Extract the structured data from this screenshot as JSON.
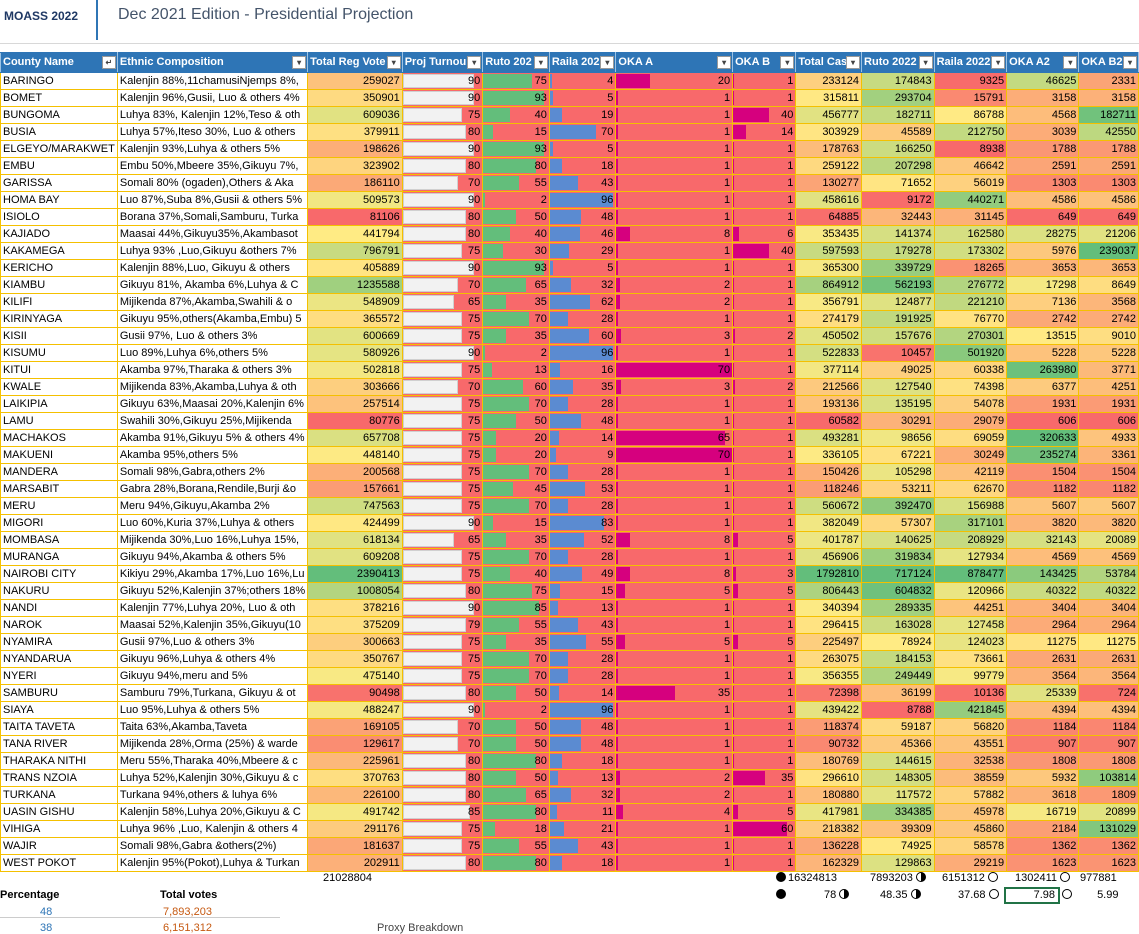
{
  "header": {
    "logo": "MOASS 2022",
    "title": "Dec 2021 Edition - Presidential Projection"
  },
  "colors": {
    "header_bg": "#2e75b6",
    "grid_line": "#f4c000",
    "green_bar": "#63be7b",
    "blue_bar": "#5b8bd1",
    "magenta_bar": "#d6007e",
    "red_fill": "#f8696b",
    "pale_fill": "#fde382"
  },
  "icons": {
    "filter": "dropdown-arrow-icon",
    "sort": "sort-filter-icon",
    "circle_full": "full-circle-icon",
    "circle_half": "half-circle-icon",
    "circle_empty": "empty-circle-icon"
  },
  "columns": [
    "County Name",
    "Ethnic Composition",
    "Total Reg Vote",
    "Proj Turnou",
    "Ruto 202",
    "Raila 202",
    "OKA A",
    "OKA B",
    "Total Cas",
    "Ruto 2022",
    "Raila 2022",
    "OKA A2",
    "OKA B2"
  ],
  "rows": [
    [
      "BARINGO",
      "Kalenjin 88%,11chamusiNjemps 8%,",
      "259027",
      "90",
      "75",
      "4",
      "20",
      "1",
      "233124",
      "174843",
      "9325",
      "46625",
      "2331"
    ],
    [
      "BOMET",
      "Kalenjin 96%,Gusii, Luo & others 4%",
      "350901",
      "90",
      "93",
      "5",
      "1",
      "1",
      "315811",
      "293704",
      "15791",
      "3158",
      "3158"
    ],
    [
      "BUNGOMA",
      "Luhya 83%, Kalenjin 12%,Teso & oth",
      "609036",
      "75",
      "40",
      "19",
      "1",
      "40",
      "456777",
      "182711",
      "86788",
      "4568",
      "182711"
    ],
    [
      "BUSIA",
      "Luhya 57%,Iteso 30%, Luo & others",
      "379911",
      "80",
      "15",
      "70",
      "1",
      "14",
      "303929",
      "45589",
      "212750",
      "3039",
      "42550"
    ],
    [
      "ELGEYO/MARAKWET",
      "Kalenjin 93%,Luhya & others 5%",
      "198626",
      "90",
      "93",
      "5",
      "1",
      "1",
      "178763",
      "166250",
      "8938",
      "1788",
      "1788"
    ],
    [
      "EMBU",
      "Embu 50%,Mbeere 35%,Gikuyu 7%,",
      "323902",
      "80",
      "80",
      "18",
      "1",
      "1",
      "259122",
      "207298",
      "46642",
      "2591",
      "2591"
    ],
    [
      "GARISSA",
      "Somali 80% (ogaden),Others & Aka",
      "186110",
      "70",
      "55",
      "43",
      "1",
      "1",
      "130277",
      "71652",
      "56019",
      "1303",
      "1303"
    ],
    [
      "HOMA BAY",
      "Luo 87%,Suba 8%,Gusii & others 5%",
      "509573",
      "90",
      "2",
      "96",
      "1",
      "1",
      "458616",
      "9172",
      "440271",
      "4586",
      "4586"
    ],
    [
      "ISIOLO",
      "Borana 37%,Somali,Samburu, Turka",
      "81106",
      "80",
      "50",
      "48",
      "1",
      "1",
      "64885",
      "32443",
      "31145",
      "649",
      "649"
    ],
    [
      "KAJIADO",
      "Maasai 44%,Gikuyu35%,Akambasot",
      "441794",
      "80",
      "40",
      "46",
      "8",
      "6",
      "353435",
      "141374",
      "162580",
      "28275",
      "21206"
    ],
    [
      "KAKAMEGA",
      "Luhya 93% ,Luo,Gikuyu &others 7%",
      "796791",
      "75",
      "30",
      "29",
      "1",
      "40",
      "597593",
      "179278",
      "173302",
      "5976",
      "239037"
    ],
    [
      "KERICHO",
      "Kalenjin 88%,Luo, Gikuyu & others",
      "405889",
      "90",
      "93",
      "5",
      "1",
      "1",
      "365300",
      "339729",
      "18265",
      "3653",
      "3653"
    ],
    [
      "KIAMBU",
      "Gikuyu 81%, Akamba 6%,Luhya & C",
      "1235588",
      "70",
      "65",
      "32",
      "2",
      "1",
      "864912",
      "562193",
      "276772",
      "17298",
      "8649"
    ],
    [
      "KILIFI",
      "Mijikenda 87%,Akamba,Swahili & o",
      "548909",
      "65",
      "35",
      "62",
      "2",
      "1",
      "356791",
      "124877",
      "221210",
      "7136",
      "3568"
    ],
    [
      "KIRINYAGA",
      "Gikuyu 95%,others(Akamba,Embu) 5",
      "365572",
      "75",
      "70",
      "28",
      "1",
      "1",
      "274179",
      "191925",
      "76770",
      "2742",
      "2742"
    ],
    [
      "KISII",
      "Gusii 97%, Luo & others 3%",
      "600669",
      "75",
      "35",
      "60",
      "3",
      "2",
      "450502",
      "157676",
      "270301",
      "13515",
      "9010"
    ],
    [
      "KISUMU",
      "Luo 89%,Luhya 6%,others 5%",
      "580926",
      "90",
      "2",
      "96",
      "1",
      "1",
      "522833",
      "10457",
      "501920",
      "5228",
      "5228"
    ],
    [
      "KITUI",
      "Akamba 97%,Tharaka & others 3%",
      "502818",
      "75",
      "13",
      "16",
      "70",
      "1",
      "377114",
      "49025",
      "60338",
      "263980",
      "3771"
    ],
    [
      "KWALE",
      "Mijikenda 83%,Akamba,Luhya & oth",
      "303666",
      "70",
      "60",
      "35",
      "3",
      "2",
      "212566",
      "127540",
      "74398",
      "6377",
      "4251"
    ],
    [
      "LAIKIPIA",
      "Gikuyu 63%,Maasai 20%,Kalenjin 6%",
      "257514",
      "75",
      "70",
      "28",
      "1",
      "1",
      "193136",
      "135195",
      "54078",
      "1931",
      "1931"
    ],
    [
      "LAMU",
      "Swahili 30%,Gikuyu 25%,Mijikenda",
      "80776",
      "75",
      "50",
      "48",
      "1",
      "1",
      "60582",
      "30291",
      "29079",
      "606",
      "606"
    ],
    [
      "MACHAKOS",
      "Akamba 91%,Gikuyu 5% & others 4%",
      "657708",
      "75",
      "20",
      "14",
      "65",
      "1",
      "493281",
      "98656",
      "69059",
      "320633",
      "4933"
    ],
    [
      "MAKUENI",
      "Akamba 95%,others 5%",
      "448140",
      "75",
      "20",
      "9",
      "70",
      "1",
      "336105",
      "67221",
      "30249",
      "235274",
      "3361"
    ],
    [
      "MANDERA",
      "Somali 98%,Gabra,others 2%",
      "200568",
      "75",
      "70",
      "28",
      "1",
      "1",
      "150426",
      "105298",
      "42119",
      "1504",
      "1504"
    ],
    [
      "MARSABIT",
      "Gabra 28%,Borana,Rendile,Burji &o",
      "157661",
      "75",
      "45",
      "53",
      "1",
      "1",
      "118246",
      "53211",
      "62670",
      "1182",
      "1182"
    ],
    [
      "MERU",
      "Meru 94%,Gikuyu,Akamba 2%",
      "747563",
      "75",
      "70",
      "28",
      "1",
      "1",
      "560672",
      "392470",
      "156988",
      "5607",
      "5607"
    ],
    [
      "MIGORI",
      "Luo 60%,Kuria 37%,Luhya & others",
      "424499",
      "90",
      "15",
      "83",
      "1",
      "1",
      "382049",
      "57307",
      "317101",
      "3820",
      "3820"
    ],
    [
      "MOMBASA",
      "Mijikenda 30%,Luo 16%,Luhya 15%,",
      "618134",
      "65",
      "35",
      "52",
      "8",
      "5",
      "401787",
      "140625",
      "208929",
      "32143",
      "20089"
    ],
    [
      "MURANGA",
      "Gikuyu 94%,Akamba & others 5%",
      "609208",
      "75",
      "70",
      "28",
      "1",
      "1",
      "456906",
      "319834",
      "127934",
      "4569",
      "4569"
    ],
    [
      "NAIROBI CITY",
      "Kikiyu 29%,Akamba 17%,Luo 16%,Lu",
      "2390413",
      "75",
      "40",
      "49",
      "8",
      "3",
      "1792810",
      "717124",
      "878477",
      "143425",
      "53784"
    ],
    [
      "NAKURU",
      "Gikuyu 52%,Kalenjin 37%;others 18%",
      "1008054",
      "80",
      "75",
      "15",
      "5",
      "5",
      "806443",
      "604832",
      "120966",
      "40322",
      "40322"
    ],
    [
      "NANDI",
      "Kalenjin 77%,Luhya 20%, Luo & oth",
      "378216",
      "90",
      "85",
      "13",
      "1",
      "1",
      "340394",
      "289335",
      "44251",
      "3404",
      "3404"
    ],
    [
      "NAROK",
      "Maasai 52%,Kalenjin 35%,Gikuyu(10",
      "375209",
      "79",
      "55",
      "43",
      "1",
      "1",
      "296415",
      "163028",
      "127458",
      "2964",
      "2964"
    ],
    [
      "NYAMIRA",
      "Gusii 97%,Luo & others 3%",
      "300663",
      "75",
      "35",
      "55",
      "5",
      "5",
      "225497",
      "78924",
      "124023",
      "11275",
      "11275"
    ],
    [
      "NYANDARUA",
      "Gikuyu 96%,Luhya & others 4%",
      "350767",
      "75",
      "70",
      "28",
      "1",
      "1",
      "263075",
      "184153",
      "73661",
      "2631",
      "2631"
    ],
    [
      "NYERI",
      "Gikuyu 94%,meru and 5%",
      "475140",
      "75",
      "70",
      "28",
      "1",
      "1",
      "356355",
      "249449",
      "99779",
      "3564",
      "3564"
    ],
    [
      "SAMBURU",
      "Samburu 79%,Turkana, Gikuyu & ot",
      "90498",
      "80",
      "50",
      "14",
      "35",
      "1",
      "72398",
      "36199",
      "10136",
      "25339",
      "724"
    ],
    [
      "SIAYA",
      "Luo 95%,Luhya & others 5%",
      "488247",
      "90",
      "2",
      "96",
      "1",
      "1",
      "439422",
      "8788",
      "421845",
      "4394",
      "4394"
    ],
    [
      "TAITA TAVETA",
      "Taita 63%,Akamba,Taveta",
      "169105",
      "70",
      "50",
      "48",
      "1",
      "1",
      "118374",
      "59187",
      "56820",
      "1184",
      "1184"
    ],
    [
      "TANA RIVER",
      "Mijikenda 28%,Orma (25%) & warde",
      "129617",
      "70",
      "50",
      "48",
      "1",
      "1",
      "90732",
      "45366",
      "43551",
      "907",
      "907"
    ],
    [
      "THARAKA NITHI",
      "Meru 55%,Tharaka 40%,Mbeere & c",
      "225961",
      "80",
      "80",
      "18",
      "1",
      "1",
      "180769",
      "144615",
      "32538",
      "1808",
      "1808"
    ],
    [
      "TRANS NZOIA",
      "Luhya 52%,Kalenjin 30%,Gikuyu & c",
      "370763",
      "80",
      "50",
      "13",
      "2",
      "35",
      "296610",
      "148305",
      "38559",
      "5932",
      "103814"
    ],
    [
      "TURKANA",
      "Turkana 94%,others & luhya 6%",
      "226100",
      "80",
      "65",
      "32",
      "2",
      "1",
      "180880",
      "117572",
      "57882",
      "3618",
      "1809"
    ],
    [
      "UASIN GISHU",
      "Kalenjin 58%,Luhya 20%,Gikuyu & C",
      "491742",
      "85",
      "80",
      "11",
      "4",
      "5",
      "417981",
      "334385",
      "45978",
      "16719",
      "20899"
    ],
    [
      "VIHIGA",
      "Luhya 96% ,Luo, Kalenjin & others 4",
      "291176",
      "75",
      "18",
      "21",
      "1",
      "60",
      "218382",
      "39309",
      "45860",
      "2184",
      "131029"
    ],
    [
      "WAJIR",
      "Somali 98%,Gabra &others(2%)",
      "181637",
      "75",
      "55",
      "43",
      "1",
      "1",
      "136228",
      "74925",
      "58578",
      "1362",
      "1362"
    ],
    [
      "WEST POKOT",
      "Kalenjin 95%(Pokot),Luhya & Turkan",
      "202911",
      "80",
      "80",
      "18",
      "1",
      "1",
      "162329",
      "129863",
      "29219",
      "1623",
      "1623"
    ]
  ],
  "totals": {
    "reg": "21028804",
    "cast": "16324813",
    "ruto": "7893203",
    "raila": "6151312",
    "oka_a": "1302411",
    "oka_b": "977881",
    "cast_pct": "78",
    "ruto_pct": "48.35",
    "raila_pct": "37.68",
    "oka_a_pct": "7.98",
    "oka_b_pct": "5.99"
  },
  "summary": {
    "percentage_label": "Percentage",
    "total_votes_label": "Total votes",
    "pct1": "48",
    "votes1": "7,893,203",
    "pct2": "38",
    "votes2": "6,151,312",
    "proxy_label": "Proxy Breakdown"
  }
}
